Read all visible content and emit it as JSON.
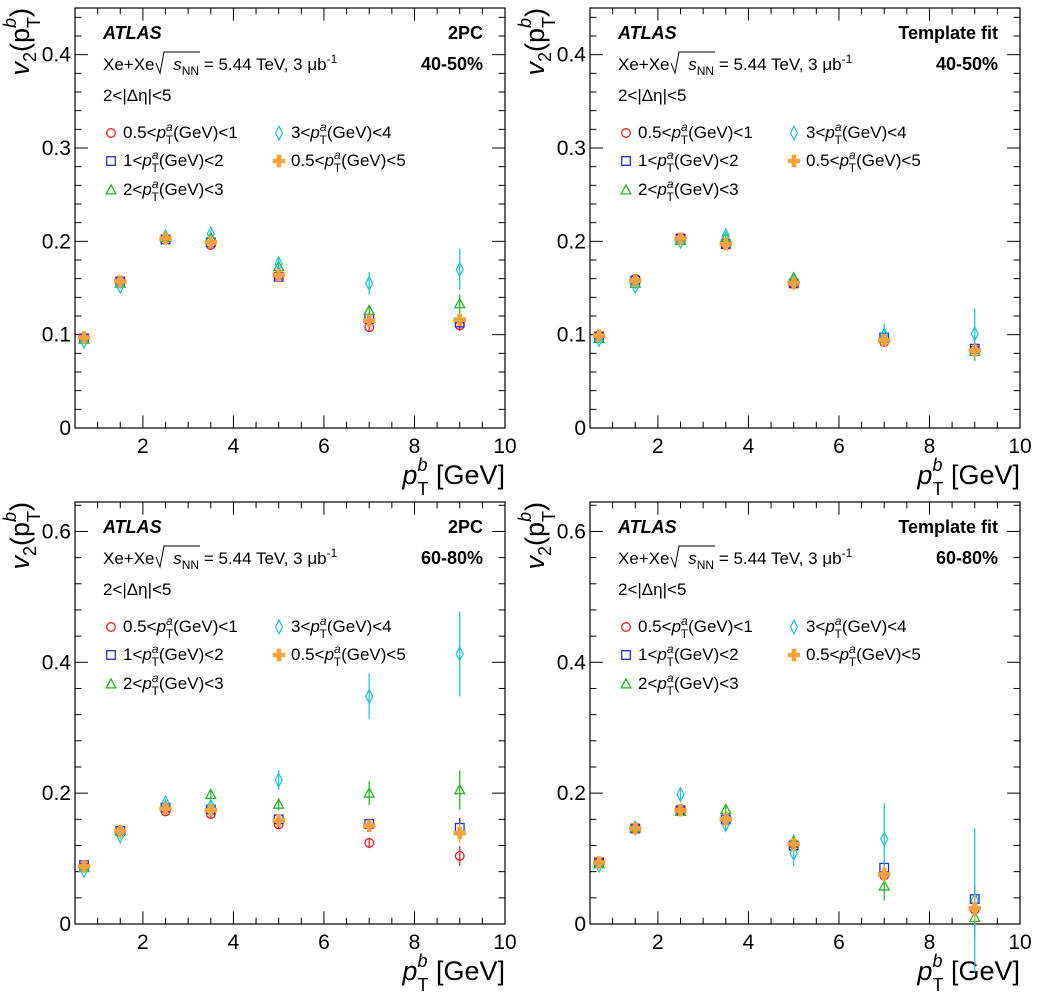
{
  "colors": {
    "0.5<p_T^a(GeV)<1": "#e8202a",
    "1<p_T^a(GeV)<2": "#2a2ad8",
    "2<p_T^a(GeV)<3": "#2ab52a",
    "3<p_T^a(GeV)<4": "#28c8c8",
    "0.5<p_T^a(GeV)<5": "#f7a13a"
  },
  "series_meta": [
    {
      "key": "0.5<p_T^a(GeV)<1",
      "marker": "circle"
    },
    {
      "key": "1<p_T^a(GeV)<2",
      "marker": "square"
    },
    {
      "key": "2<p_T^a(GeV)<3",
      "marker": "triangle"
    },
    {
      "key": "3<p_T^a(GeV)<4",
      "marker": "diamond"
    },
    {
      "key": "0.5<p_T^a(GeV)<5",
      "marker": "cross"
    }
  ],
  "common_text": {
    "atlas": "ATLAS",
    "system_prefix": "Xe+Xe",
    "sqrt_s": "s",
    "sqrt_sub": "NN",
    "system_suffix": "= 5.44 TeV, 3 μb",
    "lumi_sup": "-1",
    "deta": "2<|Δη|<5",
    "ylabel_main": "v",
    "ylabel_sub": "2",
    "ylabel_p": "(p",
    "ylabel_sup": "b",
    "ylabel_subT": "T",
    "ylabel_close": ")",
    "xlabel_p": "p",
    "xlabel_sup": "b",
    "xlabel_sub": "T",
    "xlabel_unit": "[GeV]",
    "legend": [
      {
        "lo": "0.5<",
        "hi": "(GeV)<1"
      },
      {
        "lo": "1<",
        "hi": "(GeV)<2"
      },
      {
        "lo": "2<",
        "hi": "(GeV)<3"
      },
      {
        "lo": "3<",
        "hi": "(GeV)<4"
      },
      {
        "lo": "0.5<",
        "hi": "(GeV)<5"
      }
    ]
  },
  "chart_data": [
    {
      "type": "scatter",
      "method": "2PC",
      "centrality": "40-50%",
      "xlim": [
        0.5,
        10
      ],
      "ylim": [
        0,
        0.45
      ],
      "yticks": [
        0,
        0.1,
        0.2,
        0.3,
        0.4
      ],
      "yticklabels": [
        "0",
        "0.1",
        "0.2",
        "0.3",
        "0.4"
      ],
      "xticks": [
        2,
        4,
        6,
        8,
        10
      ],
      "xticklabels": [
        "2",
        "4",
        "6",
        "8",
        "10"
      ],
      "x": [
        0.7,
        1.5,
        2.5,
        3.5,
        5,
        7,
        9
      ],
      "series": [
        {
          "key": "0.5<p_T^a(GeV)<1",
          "values": [
            0.097,
            0.158,
            0.203,
            0.196,
            0.163,
            0.108,
            0.11
          ],
          "errors": [
            0.003,
            0.003,
            0.003,
            0.003,
            0.003,
            0.004,
            0.006
          ]
        },
        {
          "key": "1<p_T^a(GeV)<2",
          "values": [
            0.096,
            0.157,
            0.202,
            0.199,
            0.162,
            0.117,
            0.113
          ],
          "errors": [
            0.003,
            0.003,
            0.003,
            0.003,
            0.003,
            0.004,
            0.006
          ]
        },
        {
          "key": "2<p_T^a(GeV)<3",
          "values": [
            0.095,
            0.155,
            0.204,
            0.204,
            0.173,
            0.126,
            0.133
          ],
          "errors": [
            0.003,
            0.003,
            0.003,
            0.004,
            0.004,
            0.006,
            0.01
          ]
        },
        {
          "key": "3<p_T^a(GeV)<4",
          "values": [
            0.093,
            0.152,
            0.205,
            0.208,
            0.176,
            0.155,
            0.17
          ],
          "errors": [
            0.003,
            0.003,
            0.004,
            0.004,
            0.006,
            0.012,
            0.022
          ]
        },
        {
          "key": "0.5<p_T^a(GeV)<5",
          "values": [
            0.097,
            0.157,
            0.203,
            0.199,
            0.164,
            0.115,
            0.116
          ],
          "errors": [
            0.003,
            0.003,
            0.003,
            0.003,
            0.003,
            0.004,
            0.006
          ]
        }
      ]
    },
    {
      "type": "scatter",
      "method": "Template fit",
      "centrality": "40-50%",
      "xlim": [
        0.5,
        10
      ],
      "ylim": [
        0,
        0.45
      ],
      "yticks": [
        0,
        0.1,
        0.2,
        0.3,
        0.4
      ],
      "yticklabels": [
        "0",
        "0.1",
        "0.2",
        "0.3",
        "0.4"
      ],
      "xticks": [
        2,
        4,
        6,
        8,
        10
      ],
      "xticklabels": [
        "2",
        "4",
        "6",
        "8",
        "10"
      ],
      "x": [
        0.7,
        1.5,
        2.5,
        3.5,
        5,
        7,
        9
      ],
      "series": [
        {
          "key": "0.5<p_T^a(GeV)<1",
          "values": [
            0.099,
            0.16,
            0.204,
            0.196,
            0.155,
            0.092,
            0.084
          ],
          "errors": [
            0.003,
            0.003,
            0.003,
            0.003,
            0.003,
            0.004,
            0.006
          ]
        },
        {
          "key": "1<p_T^a(GeV)<2",
          "values": [
            0.098,
            0.158,
            0.203,
            0.197,
            0.155,
            0.097,
            0.085
          ],
          "errors": [
            0.003,
            0.003,
            0.003,
            0.003,
            0.003,
            0.004,
            0.006
          ]
        },
        {
          "key": "2<p_T^a(GeV)<3",
          "values": [
            0.096,
            0.155,
            0.201,
            0.204,
            0.161,
            0.096,
            0.082
          ],
          "errors": [
            0.003,
            0.003,
            0.003,
            0.004,
            0.004,
            0.006,
            0.01
          ]
        },
        {
          "key": "3<p_T^a(GeV)<4",
          "values": [
            0.095,
            0.152,
            0.2,
            0.206,
            0.156,
            0.1,
            0.101
          ],
          "errors": [
            0.003,
            0.003,
            0.004,
            0.004,
            0.006,
            0.012,
            0.027
          ]
        },
        {
          "key": "0.5<p_T^a(GeV)<5",
          "values": [
            0.099,
            0.158,
            0.203,
            0.197,
            0.155,
            0.094,
            0.083
          ],
          "errors": [
            0.003,
            0.003,
            0.003,
            0.003,
            0.003,
            0.004,
            0.006
          ]
        }
      ]
    },
    {
      "type": "scatter",
      "method": "2PC",
      "centrality": "60-80%",
      "xlim": [
        0.5,
        10
      ],
      "ylim": [
        0,
        0.645
      ],
      "yticks": [
        0,
        0.2,
        0.4,
        0.6
      ],
      "yticklabels": [
        "0",
        "0.2",
        "0.4",
        "0.6"
      ],
      "xticks": [
        2,
        4,
        6,
        8,
        10
      ],
      "xticklabels": [
        "2",
        "4",
        "6",
        "8",
        "10"
      ],
      "x": [
        0.7,
        1.5,
        2.5,
        3.5,
        5,
        7,
        9
      ],
      "series": [
        {
          "key": "0.5<p_T^a(GeV)<1",
          "values": [
            0.088,
            0.14,
            0.172,
            0.168,
            0.152,
            0.124,
            0.104
          ],
          "errors": [
            0.004,
            0.004,
            0.005,
            0.006,
            0.006,
            0.008,
            0.015
          ]
        },
        {
          "key": "1<p_T^a(GeV)<2",
          "values": [
            0.09,
            0.142,
            0.178,
            0.175,
            0.16,
            0.153,
            0.147
          ],
          "errors": [
            0.004,
            0.004,
            0.005,
            0.006,
            0.006,
            0.008,
            0.015
          ]
        },
        {
          "key": "2<p_T^a(GeV)<3",
          "values": [
            0.086,
            0.143,
            0.18,
            0.198,
            0.183,
            0.2,
            0.205
          ],
          "errors": [
            0.004,
            0.005,
            0.006,
            0.007,
            0.009,
            0.018,
            0.03
          ]
        },
        {
          "key": "3<p_T^a(GeV)<4",
          "values": [
            0.082,
            0.135,
            0.185,
            0.18,
            0.22,
            0.348,
            0.413
          ],
          "errors": [
            0.004,
            0.005,
            0.006,
            0.008,
            0.015,
            0.035,
            0.065
          ]
        },
        {
          "key": "0.5<p_T^a(GeV)<5",
          "values": [
            0.088,
            0.142,
            0.176,
            0.174,
            0.158,
            0.15,
            0.139
          ],
          "errors": [
            0.004,
            0.004,
            0.005,
            0.006,
            0.006,
            0.008,
            0.015
          ]
        }
      ]
    },
    {
      "type": "scatter",
      "method": "Template fit",
      "centrality": "60-80%",
      "xlim": [
        0.5,
        10
      ],
      "ylim": [
        0,
        0.645
      ],
      "yticks": [
        0,
        0.2,
        0.4,
        0.6
      ],
      "yticklabels": [
        "0",
        "0.2",
        "0.4",
        "0.6"
      ],
      "xticks": [
        2,
        4,
        6,
        8,
        10
      ],
      "xticklabels": [
        "2",
        "4",
        "6",
        "8",
        "10"
      ],
      "x": [
        0.7,
        1.5,
        2.5,
        3.5,
        5,
        7,
        9
      ],
      "series": [
        {
          "key": "0.5<p_T^a(GeV)<1",
          "values": [
            0.094,
            0.146,
            0.174,
            0.158,
            0.122,
            0.074,
            0.022
          ],
          "errors": [
            0.004,
            0.004,
            0.005,
            0.006,
            0.008,
            0.012,
            0.02
          ]
        },
        {
          "key": "1<p_T^a(GeV)<2",
          "values": [
            0.094,
            0.146,
            0.174,
            0.16,
            0.12,
            0.086,
            0.038
          ],
          "errors": [
            0.004,
            0.004,
            0.005,
            0.006,
            0.008,
            0.012,
            0.02
          ]
        },
        {
          "key": "2<p_T^a(GeV)<3",
          "values": [
            0.092,
            0.147,
            0.172,
            0.175,
            0.127,
            0.058,
            0.01
          ],
          "errors": [
            0.004,
            0.005,
            0.006,
            0.007,
            0.01,
            0.022,
            0.03
          ]
        },
        {
          "key": "3<p_T^a(GeV)<4",
          "values": [
            0.09,
            0.147,
            0.198,
            0.152,
            0.108,
            0.13,
            0.036
          ],
          "errors": [
            0.004,
            0.005,
            0.008,
            0.008,
            0.02,
            0.055,
            0.11
          ]
        },
        {
          "key": "0.5<p_T^a(GeV)<5",
          "values": [
            0.094,
            0.146,
            0.174,
            0.16,
            0.122,
            0.076,
            0.024
          ],
          "errors": [
            0.004,
            0.004,
            0.005,
            0.006,
            0.008,
            0.012,
            0.02
          ]
        }
      ]
    }
  ]
}
